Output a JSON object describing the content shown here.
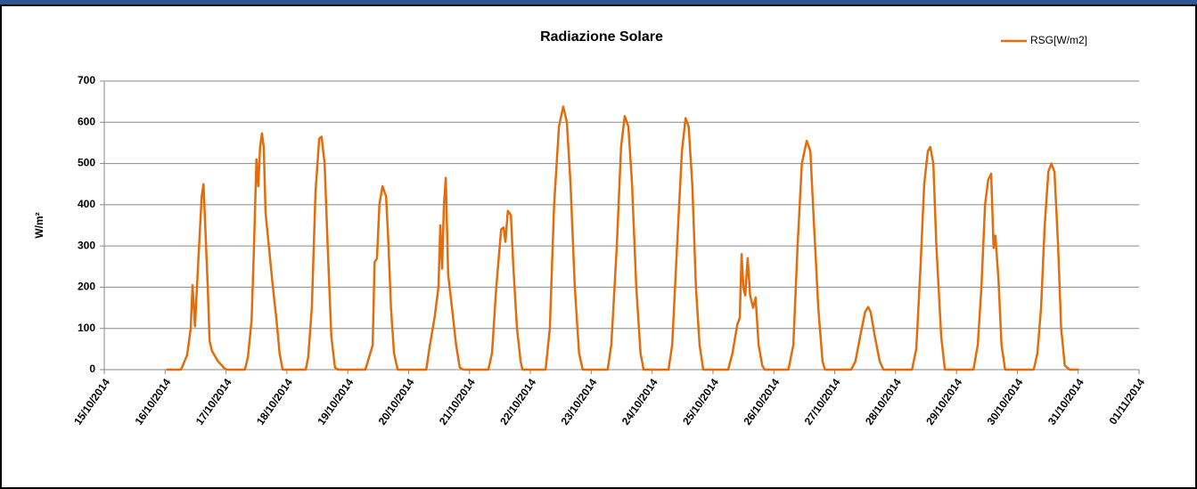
{
  "chart_data": {
    "type": "line",
    "title": "Radiazione Solare",
    "ylabel": "W/m²",
    "legend": "top-right",
    "grid": true,
    "xlim": [
      41927,
      41944
    ],
    "ylim": [
      0,
      700
    ],
    "yticks": [
      0,
      100,
      200,
      300,
      400,
      500,
      600,
      700
    ],
    "xticks": [
      {
        "value": 41927,
        "label": "15/10/2014"
      },
      {
        "value": 41928,
        "label": "16/10/2014"
      },
      {
        "value": 41929,
        "label": "17/10/2014"
      },
      {
        "value": 41930,
        "label": "18/10/2014"
      },
      {
        "value": 41931,
        "label": "19/10/2014"
      },
      {
        "value": 41932,
        "label": "20/10/2014"
      },
      {
        "value": 41933,
        "label": "21/10/2014"
      },
      {
        "value": 41934,
        "label": "22/10/2014"
      },
      {
        "value": 41935,
        "label": "23/10/2014"
      },
      {
        "value": 41936,
        "label": "24/10/2014"
      },
      {
        "value": 41937,
        "label": "25/10/2014"
      },
      {
        "value": 41938,
        "label": "26/10/2014"
      },
      {
        "value": 41939,
        "label": "27/10/2014"
      },
      {
        "value": 41940,
        "label": "28/10/2014"
      },
      {
        "value": 41941,
        "label": "29/10/2014"
      },
      {
        "value": 41942,
        "label": "30/10/2014"
      },
      {
        "value": 41943,
        "label": "31/10/2014"
      },
      {
        "value": 41944,
        "label": "01/11/2014"
      }
    ],
    "x": [
      41928.02,
      41928.26,
      41928.29,
      41928.36,
      41928.42,
      41928.45,
      41928.49,
      41928.54,
      41928.6,
      41928.63,
      41928.65,
      41928.7,
      41928.73,
      41928.77,
      41928.87,
      41928.98,
      41929.02,
      41929.31,
      41929.36,
      41929.42,
      41929.46,
      41929.5,
      41929.53,
      41929.56,
      41929.59,
      41929.62,
      41929.65,
      41929.71,
      41929.77,
      41929.83,
      41929.88,
      41929.93,
      41930.31,
      41930.35,
      41930.41,
      41930.47,
      41930.53,
      41930.57,
      41930.62,
      41930.67,
      41930.73,
      41930.79,
      41930.84,
      41931.29,
      41931.35,
      41931.41,
      41931.44,
      41931.48,
      41931.52,
      41931.57,
      41931.63,
      41931.67,
      41931.71,
      41931.76,
      41931.82,
      41932.29,
      41932.34,
      41932.43,
      41932.49,
      41932.52,
      41932.55,
      41932.58,
      41932.61,
      41932.65,
      41932.72,
      41932.78,
      41932.84,
      41932.9,
      41933.31,
      41933.37,
      41933.44,
      41933.52,
      41933.56,
      41933.59,
      41933.63,
      41933.68,
      41933.72,
      41933.78,
      41933.84,
      41933.87,
      41934.25,
      41934.32,
      41934.39,
      41934.47,
      41934.54,
      41934.6,
      41934.66,
      41934.73,
      41934.8,
      41934.86,
      41935.27,
      41935.33,
      41935.42,
      41935.49,
      41935.55,
      41935.61,
      41935.67,
      41935.74,
      41935.81,
      41935.86,
      41936.27,
      41936.33,
      41936.41,
      41936.49,
      41936.55,
      41936.6,
      41936.66,
      41936.72,
      41936.78,
      41936.84,
      41937.25,
      41937.32,
      41937.4,
      41937.44,
      41937.47,
      41937.5,
      41937.53,
      41937.57,
      41937.61,
      41937.66,
      41937.7,
      41937.75,
      41937.81,
      41937.85,
      41938.24,
      41938.32,
      41938.39,
      41938.46,
      41938.54,
      41938.6,
      41938.65,
      41938.73,
      41938.8,
      41938.84,
      41939.27,
      41939.34,
      41939.43,
      41939.5,
      41939.55,
      41939.59,
      41939.66,
      41939.74,
      41939.8,
      41940.27,
      41940.34,
      41940.41,
      41940.47,
      41940.53,
      41940.57,
      41940.62,
      41940.67,
      41940.75,
      41940.81,
      41941.28,
      41941.35,
      41941.41,
      41941.47,
      41941.52,
      41941.57,
      41941.61,
      41941.64,
      41941.69,
      41941.74,
      41941.8,
      41942.27,
      41942.33,
      41942.39,
      41942.45,
      41942.51,
      41942.56,
      41942.61,
      41942.67,
      41942.72,
      41942.78,
      41942.86,
      41943.01
    ],
    "series": [
      {
        "name": "RSG[W/m2]",
        "color": "#e46c0a",
        "values": [
          0,
          0,
          10,
          35,
          100,
          205,
          105,
          250,
          420,
          450,
          380,
          200,
          70,
          45,
          20,
          2,
          0,
          0,
          30,
          120,
          300,
          510,
          445,
          540,
          573,
          540,
          380,
          290,
          200,
          120,
          40,
          0,
          0,
          30,
          150,
          430,
          560,
          565,
          500,
          300,
          80,
          5,
          0,
          0,
          30,
          60,
          260,
          270,
          400,
          445,
          420,
          300,
          150,
          40,
          0,
          0,
          50,
          130,
          200,
          350,
          245,
          400,
          465,
          230,
          140,
          60,
          5,
          0,
          0,
          40,
          200,
          340,
          345,
          310,
          385,
          375,
          250,
          100,
          20,
          0,
          0,
          100,
          400,
          590,
          638,
          600,
          450,
          200,
          40,
          0,
          0,
          60,
          300,
          540,
          615,
          590,
          450,
          200,
          40,
          0,
          0,
          60,
          300,
          530,
          610,
          590,
          450,
          200,
          60,
          0,
          0,
          40,
          110,
          125,
          280,
          200,
          180,
          270,
          180,
          150,
          175,
          60,
          10,
          0,
          0,
          60,
          300,
          500,
          555,
          530,
          380,
          150,
          20,
          0,
          0,
          20,
          90,
          140,
          152,
          140,
          80,
          20,
          0,
          0,
          50,
          250,
          450,
          530,
          540,
          500,
          300,
          80,
          0,
          0,
          60,
          200,
          400,
          460,
          475,
          295,
          325,
          220,
          60,
          0,
          0,
          40,
          150,
          350,
          480,
          500,
          480,
          300,
          100,
          10,
          0,
          0
        ]
      }
    ]
  }
}
